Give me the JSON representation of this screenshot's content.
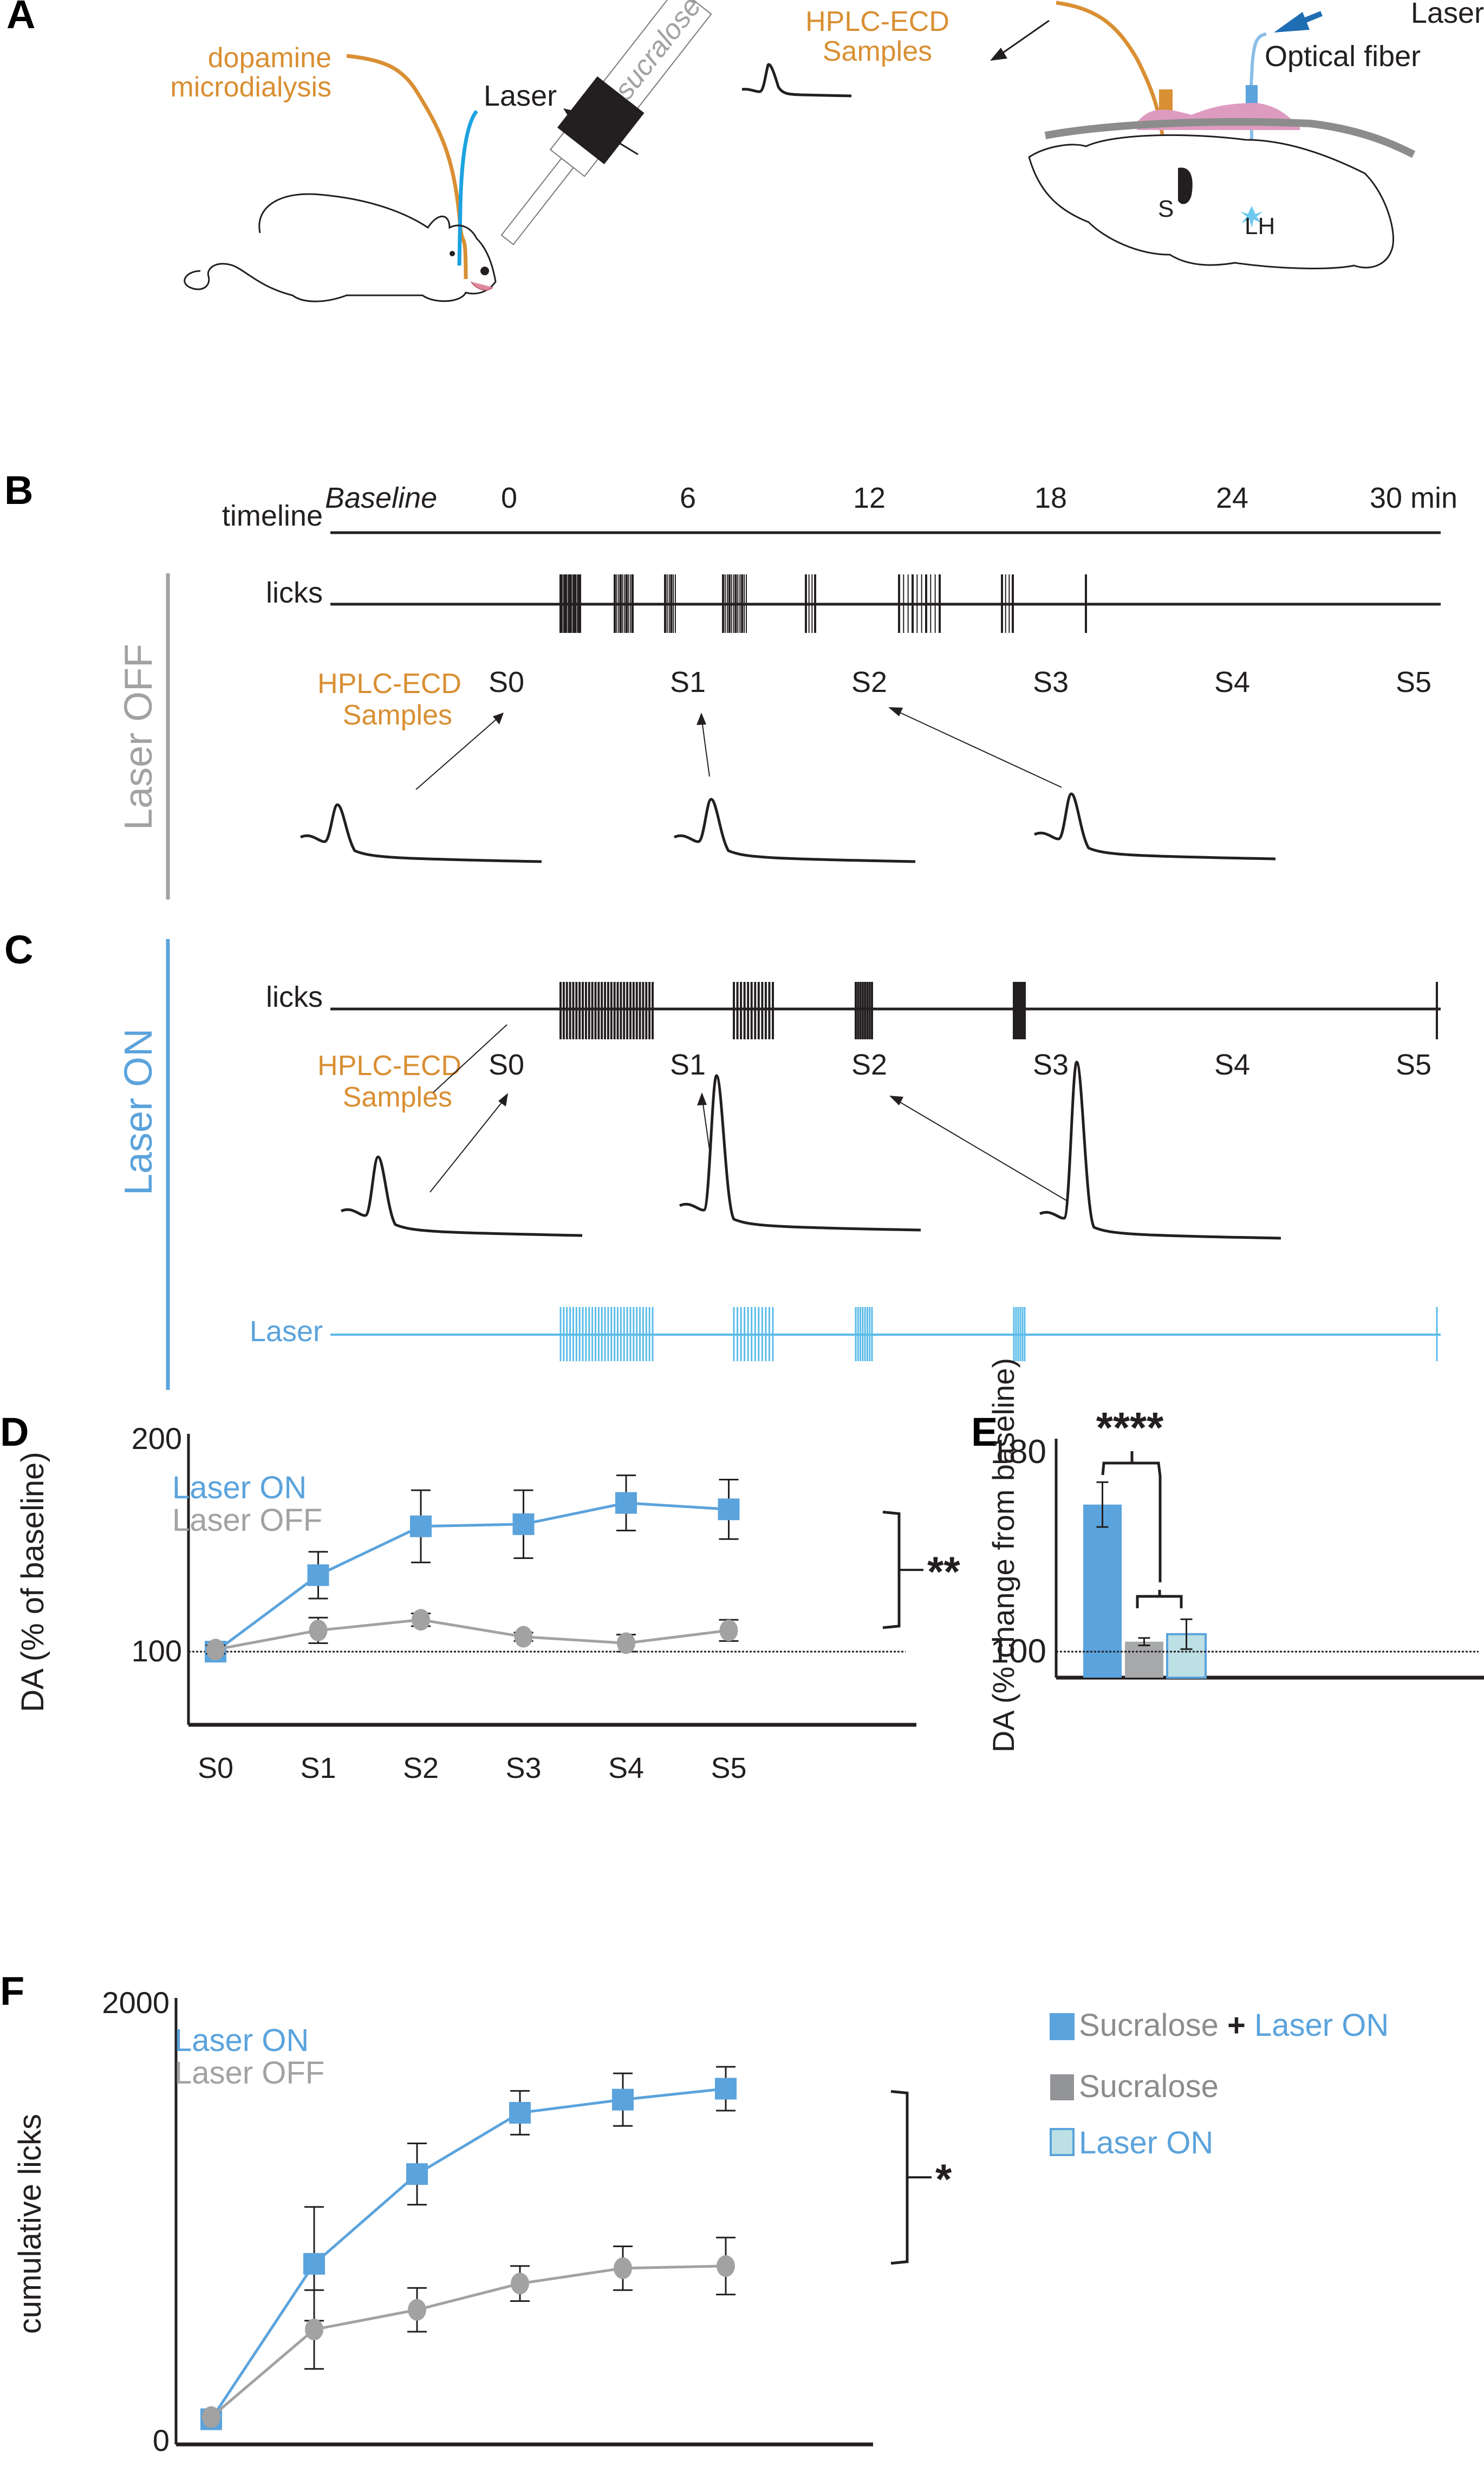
{
  "colors": {
    "orange": "#d98f33",
    "blue": "#5ba3dc",
    "laser_blue": "#5bbce8",
    "dark_blue": "#1f6db3",
    "grey": "#a2a2a2",
    "dark_grey": "#8c8c8c",
    "light_teal": "#bde0e5",
    "pink": "#de9bc0",
    "black": "#231f20"
  },
  "panels": {
    "A": {
      "letter": "A",
      "dialysis_label_1": "dopamine",
      "dialysis_label_2": "microdialysis",
      "laser_label": "Laser",
      "bottle_label": "sucralose",
      "hplc_label_1": "HPLC-ECD",
      "hplc_label_2": "Samples",
      "laser_top_label": "Laser",
      "fiber_label": "Optical fiber",
      "region_s": "S",
      "region_lh": "LH"
    },
    "B": {
      "letter": "B",
      "side_label": "Laser OFF",
      "timeline_label": "timeline",
      "baseline_label": "Baseline",
      "time_ticks": [
        "0",
        "6",
        "12",
        "18",
        "24",
        "30 min"
      ],
      "licks_label": "licks",
      "hplc_label_1": "HPLC-ECD",
      "hplc_label_2": "Samples",
      "samples": [
        "S0",
        "S1",
        "S2",
        "S3",
        "S4",
        "S5"
      ]
    },
    "C": {
      "letter": "C",
      "side_label": "Laser ON",
      "licks_label": "licks",
      "hplc_label_1": "HPLC-ECD",
      "hplc_label_2": "Samples",
      "samples": [
        "S0",
        "S1",
        "S2",
        "S3",
        "S4",
        "S5"
      ],
      "laser_label": "Laser"
    },
    "D": {
      "letter": "D",
      "significance": "**"
    },
    "E": {
      "letter": "E",
      "significance": "****"
    },
    "F": {
      "letter": "F",
      "significance": "*"
    }
  },
  "legend": {
    "items": [
      {
        "parts": [
          {
            "text": "Sucralose",
            "color": "#8c8c8c"
          },
          {
            "text": " + ",
            "color": "#231f20"
          },
          {
            "text": "Laser ON",
            "color": "#5ba3dc"
          }
        ],
        "swatch": "blue"
      },
      {
        "parts": [
          {
            "text": "Sucralose",
            "color": "#8c8c8c"
          }
        ],
        "swatch": "grey"
      },
      {
        "parts": [
          {
            "text": "Laser ON",
            "color": "#5ba3dc"
          }
        ],
        "swatch": "teal"
      }
    ]
  },
  "chart_data": [
    {
      "id": "D",
      "type": "line",
      "title": "",
      "xlabel": "",
      "ylabel": "DA (% of baseline)",
      "categories": [
        "S0",
        "S1",
        "S2",
        "S3",
        "S4",
        "S5"
      ],
      "yticks": [
        "100",
        "200"
      ],
      "ylim": [
        100,
        200
      ],
      "reference_line": 100,
      "legend": [
        "Laser ON",
        "Laser OFF"
      ],
      "legend_position": "top-left",
      "series": [
        {
          "name": "Laser ON",
          "marker": "square",
          "values": [
            100,
            136,
            159,
            160,
            170,
            167
          ],
          "error": [
            3,
            11,
            17,
            16,
            13,
            14
          ]
        },
        {
          "name": "Laser OFF",
          "marker": "circle",
          "values": [
            101,
            110,
            115,
            107,
            104,
            110
          ],
          "error": [
            2,
            6,
            3,
            2,
            4,
            5
          ]
        }
      ],
      "annotation": "**"
    },
    {
      "id": "E",
      "type": "bar",
      "xlabel": "",
      "ylabel": "DA (% change from baseline)",
      "categories": [
        "Sucralose + Laser ON",
        "Sucralose",
        "Laser ON"
      ],
      "values": [
        159,
        104,
        107
      ],
      "error": [
        9,
        1.5,
        6
      ],
      "yticks": [
        "100",
        "180"
      ],
      "ylim": [
        86,
        180
      ],
      "reference_line": 100,
      "annotation": "****"
    },
    {
      "id": "F",
      "type": "line",
      "xlabel": "",
      "ylabel": "cumulative licks",
      "categories": [
        "S0",
        "S1",
        "S2",
        "S3",
        "S4",
        "S5"
      ],
      "yticks": [
        "0",
        "2000"
      ],
      "ylim": [
        0,
        2000
      ],
      "legend": [
        "Laser ON",
        "Laser OFF"
      ],
      "legend_position": "top-left",
      "series": [
        {
          "name": "Laser ON",
          "marker": "square",
          "values": [
            100,
            810,
            1220,
            1500,
            1560,
            1610
          ],
          "error": [
            0,
            260,
            140,
            100,
            120,
            100
          ]
        },
        {
          "name": "Laser OFF",
          "marker": "circle",
          "values": [
            110,
            510,
            600,
            720,
            790,
            800
          ],
          "error": [
            0,
            180,
            100,
            80,
            100,
            130
          ]
        }
      ],
      "annotation": "*"
    }
  ]
}
